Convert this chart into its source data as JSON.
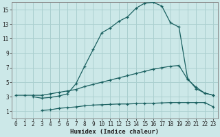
{
  "xlabel": "Humidex (Indice chaleur)",
  "bg_color": "#cce8e8",
  "grid_color": "#aacfcf",
  "line_color": "#1a6060",
  "xlim": [
    -0.5,
    23.5
  ],
  "ylim": [
    0,
    16
  ],
  "xticks": [
    0,
    1,
    2,
    3,
    4,
    5,
    6,
    7,
    8,
    9,
    10,
    11,
    12,
    13,
    14,
    15,
    16,
    17,
    18,
    19,
    20,
    21,
    22,
    23
  ],
  "yticks": [
    1,
    3,
    5,
    7,
    9,
    11,
    13,
    15
  ],
  "line1_x": [
    0,
    1,
    2,
    3,
    4,
    5,
    6,
    7,
    8,
    9,
    10,
    11,
    12,
    13,
    14,
    15,
    16,
    17,
    18,
    19,
    20,
    21,
    22,
    23
  ],
  "line1_y": [
    3.2,
    3.2,
    3.2,
    3.2,
    3.4,
    3.6,
    3.8,
    4.0,
    4.4,
    4.7,
    5.0,
    5.3,
    5.6,
    5.9,
    6.2,
    6.5,
    6.8,
    7.0,
    7.2,
    7.3,
    5.4,
    4.3,
    3.5,
    3.2
  ],
  "line2_x": [
    2,
    3,
    4,
    5,
    6,
    7,
    8,
    9,
    10,
    11,
    12,
    13,
    14,
    15,
    16,
    17,
    18,
    19,
    20,
    21,
    22,
    23
  ],
  "line2_y": [
    3.0,
    2.8,
    2.9,
    3.1,
    3.4,
    4.8,
    7.2,
    9.5,
    11.8,
    12.5,
    13.4,
    14.0,
    15.2,
    15.9,
    16.0,
    15.5,
    13.2,
    12.6,
    5.5,
    4.1,
    3.5,
    3.2
  ],
  "line3_x": [
    3,
    4,
    5,
    6,
    7,
    8,
    9,
    10,
    11,
    12,
    13,
    14,
    15,
    16,
    17,
    18,
    19,
    20,
    21,
    22,
    23
  ],
  "line3_y": [
    1.1,
    1.2,
    1.4,
    1.5,
    1.6,
    1.75,
    1.85,
    1.9,
    1.95,
    2.0,
    2.0,
    2.05,
    2.1,
    2.1,
    2.15,
    2.2,
    2.2,
    2.2,
    2.2,
    2.2,
    1.6
  ]
}
